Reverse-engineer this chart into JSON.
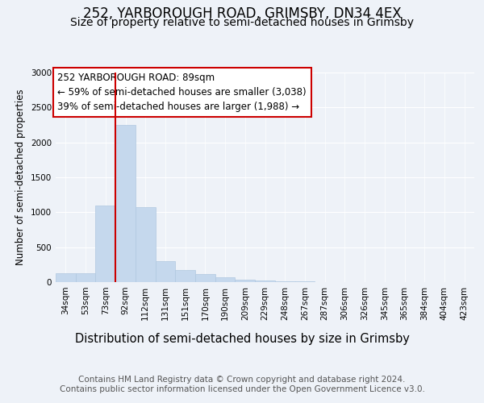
{
  "title_line1": "252, YARBOROUGH ROAD, GRIMSBY, DN34 4EX",
  "title_line2": "Size of property relative to semi-detached houses in Grimsby",
  "xlabel": "Distribution of semi-detached houses by size in Grimsby",
  "ylabel": "Number of semi-detached properties",
  "categories": [
    "34sqm",
    "53sqm",
    "73sqm",
    "92sqm",
    "112sqm",
    "131sqm",
    "151sqm",
    "170sqm",
    "190sqm",
    "209sqm",
    "229sqm",
    "248sqm",
    "267sqm",
    "287sqm",
    "306sqm",
    "326sqm",
    "345sqm",
    "365sqm",
    "384sqm",
    "404sqm",
    "423sqm"
  ],
  "values": [
    130,
    130,
    1100,
    2250,
    1070,
    300,
    175,
    110,
    70,
    40,
    25,
    15,
    10,
    5,
    2,
    1,
    1,
    0,
    0,
    0,
    0
  ],
  "bar_color": "#c5d8ed",
  "bar_edge_color": "#b0c8e0",
  "vline_color": "#cc0000",
  "annotation_text": "252 YARBOROUGH ROAD: 89sqm\n← 59% of semi-detached houses are smaller (3,038)\n39% of semi-detached houses are larger (1,988) →",
  "box_color": "#ffffff",
  "box_edge_color": "#cc0000",
  "ylim": [
    0,
    3000
  ],
  "yticks": [
    0,
    500,
    1000,
    1500,
    2000,
    2500,
    3000
  ],
  "footer_line1": "Contains HM Land Registry data © Crown copyright and database right 2024.",
  "footer_line2": "Contains public sector information licensed under the Open Government Licence v3.0.",
  "title1_fontsize": 12,
  "title2_fontsize": 10,
  "xlabel_fontsize": 10.5,
  "ylabel_fontsize": 8.5,
  "tick_fontsize": 7.5,
  "footer_fontsize": 7.5,
  "annotation_fontsize": 8.5,
  "background_color": "#eef2f8",
  "plot_bg_color": "#eef2f8",
  "grid_color": "#ffffff"
}
